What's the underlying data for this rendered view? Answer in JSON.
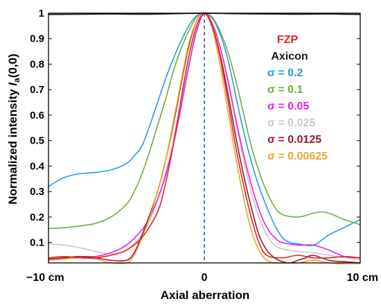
{
  "chart_data": {
    "type": "line",
    "title": "",
    "xlabel": "Axial aberration",
    "ylabel_main": "Normalized intensity ",
    "ylabel_italic": "I",
    "ylabel_sub": "a",
    "ylabel_tail": "(0,0)",
    "xlim": [
      -10,
      10
    ],
    "ylim": [
      0.02,
      1.0
    ],
    "x_ticks": [
      {
        "value": -10,
        "label": "−10 cm",
        "anchor": "start"
      },
      {
        "value": 0,
        "label": "0",
        "anchor": "middle"
      },
      {
        "value": 10,
        "label": "10 cm",
        "anchor": "end"
      }
    ],
    "y_ticks": [
      0.1,
      0.2,
      0.3,
      0.4,
      0.5,
      0.6,
      0.7,
      0.8,
      0.9,
      1
    ],
    "y_tick_labels": [
      "0.1",
      "0.2",
      "0.3",
      "0.4",
      "0.5",
      "0.6",
      "0.7",
      "0.8",
      "0.9",
      "1"
    ],
    "grid": false,
    "legend_position": "right",
    "focus_line": {
      "x": 0,
      "color": "#1f5fb0",
      "style": "dashed"
    },
    "series": [
      {
        "name": "FZP",
        "color": "#e0241b",
        "x": [
          -10,
          -9,
          -8,
          -7,
          -6,
          -5,
          -4,
          -3,
          -2.5,
          -2,
          -1.5,
          -1,
          -0.5,
          0,
          0.5,
          1,
          1.5,
          2,
          2.5,
          3,
          3.5,
          4,
          5,
          6,
          7,
          8,
          9,
          10
        ],
        "y": [
          0.04,
          0.045,
          0.04,
          0.04,
          0.05,
          0.07,
          0.12,
          0.22,
          0.33,
          0.48,
          0.66,
          0.83,
          0.95,
          1.0,
          0.95,
          0.83,
          0.66,
          0.48,
          0.33,
          0.2,
          0.1,
          0.05,
          0.04,
          0.05,
          0.04,
          0.04,
          0.045,
          0.04
        ]
      },
      {
        "name": "Axicon",
        "color": "#1a1a1a",
        "x": [
          -10,
          -8,
          -6,
          -4,
          -2,
          0,
          2,
          4,
          6,
          8,
          9,
          10
        ],
        "y": [
          0.995,
          0.996,
          0.997,
          0.996,
          0.998,
          1.0,
          0.998,
          0.997,
          0.996,
          0.997,
          0.996,
          0.995
        ]
      },
      {
        "name": "σ = 0.2",
        "color": "#1e9de0",
        "x": [
          -10,
          -9,
          -8,
          -7,
          -6,
          -5,
          -4.5,
          -4,
          -3.5,
          -3,
          -2.5,
          -2,
          -1.5,
          -1,
          -0.5,
          0,
          0.5,
          1,
          1.5,
          2,
          2.5,
          3,
          3.5,
          4,
          4.5,
          5,
          5.5,
          6,
          7,
          8,
          9,
          10
        ],
        "y": [
          0.32,
          0.355,
          0.37,
          0.375,
          0.385,
          0.41,
          0.44,
          0.48,
          0.56,
          0.65,
          0.74,
          0.82,
          0.89,
          0.95,
          0.99,
          1.0,
          0.98,
          0.92,
          0.82,
          0.68,
          0.54,
          0.42,
          0.32,
          0.24,
          0.17,
          0.12,
          0.1,
          0.095,
          0.09,
          0.13,
          0.16,
          0.19
        ]
      },
      {
        "name": "σ = 0.1",
        "color": "#6fac3a",
        "x": [
          -10,
          -9,
          -8,
          -7,
          -6,
          -5,
          -4.5,
          -4,
          -3.5,
          -3,
          -2.5,
          -2,
          -1.5,
          -1,
          -0.5,
          0,
          0.5,
          1,
          1.5,
          2,
          2.5,
          3,
          3.5,
          4,
          4.5,
          5,
          6,
          7,
          7.5,
          8,
          9,
          10
        ],
        "y": [
          0.155,
          0.158,
          0.165,
          0.175,
          0.2,
          0.25,
          0.3,
          0.37,
          0.46,
          0.56,
          0.66,
          0.77,
          0.86,
          0.93,
          0.985,
          1.0,
          0.985,
          0.93,
          0.85,
          0.74,
          0.61,
          0.48,
          0.38,
          0.3,
          0.24,
          0.21,
          0.2,
          0.215,
          0.22,
          0.215,
          0.19,
          0.17
        ]
      },
      {
        "name": "σ = 0.05",
        "color": "#ea1fe0",
        "x": [
          -10,
          -9,
          -8,
          -7,
          -6,
          -5,
          -4,
          -3.5,
          -3,
          -2.5,
          -2,
          -1.5,
          -1,
          -0.5,
          0,
          0.5,
          1,
          1.5,
          2,
          2.5,
          3,
          3.5,
          4,
          4.5,
          5,
          6,
          7,
          8,
          9,
          10
        ],
        "y": [
          0.035,
          0.04,
          0.045,
          0.045,
          0.06,
          0.09,
          0.15,
          0.2,
          0.27,
          0.36,
          0.48,
          0.63,
          0.79,
          0.93,
          1.0,
          0.96,
          0.87,
          0.74,
          0.59,
          0.45,
          0.33,
          0.23,
          0.16,
          0.12,
          0.1,
          0.09,
          0.09,
          0.07,
          0.045,
          0.04
        ]
      },
      {
        "name": "σ = 0.025",
        "color": "#c8c8c8",
        "x": [
          -10,
          -9,
          -8,
          -7,
          -6,
          -5,
          -4,
          -3.5,
          -3,
          -2.5,
          -2,
          -1.5,
          -1,
          -0.5,
          0,
          0.5,
          1,
          1.5,
          2,
          2.5,
          3,
          3.5,
          4,
          4.5,
          5,
          6,
          7,
          8,
          9,
          10
        ],
        "y": [
          0.095,
          0.09,
          0.08,
          0.065,
          0.055,
          0.07,
          0.13,
          0.19,
          0.27,
          0.37,
          0.5,
          0.65,
          0.8,
          0.94,
          1.0,
          0.96,
          0.87,
          0.73,
          0.58,
          0.43,
          0.3,
          0.2,
          0.13,
          0.09,
          0.075,
          0.065,
          0.06,
          0.05,
          0.04,
          0.035
        ]
      },
      {
        "name": "σ = 0.0125",
        "color": "#a0162a",
        "x": [
          -10,
          -9,
          -8,
          -7,
          -6,
          -5,
          -4.5,
          -4,
          -3.5,
          -3,
          -2.5,
          -2,
          -1.5,
          -1,
          -0.5,
          0,
          0.5,
          1,
          1.5,
          2,
          2.5,
          3,
          3.5,
          4,
          4.5,
          5,
          5.5,
          6,
          6.5,
          7,
          8,
          9,
          10
        ],
        "y": [
          0.035,
          0.04,
          0.045,
          0.04,
          0.03,
          0.03,
          0.06,
          0.13,
          0.21,
          0.3,
          0.42,
          0.56,
          0.72,
          0.87,
          0.97,
          1.0,
          0.95,
          0.84,
          0.69,
          0.52,
          0.37,
          0.24,
          0.13,
          0.07,
          0.04,
          0.025,
          0.02,
          0.03,
          0.04,
          0.05,
          0.03,
          0.025,
          0.02
        ]
      },
      {
        "name": "σ = 0.00625",
        "color": "#eba62a",
        "x": [
          -10,
          -9,
          -8,
          -7,
          -6,
          -5,
          -4.5,
          -4,
          -3.5,
          -3,
          -2.5,
          -2,
          -1.5,
          -1,
          -0.5,
          0,
          0.5,
          1,
          1.5,
          2,
          2.5,
          3,
          3.5,
          4,
          4.5,
          5,
          6,
          7,
          8,
          9,
          10
        ],
        "y": [
          0.03,
          0.035,
          0.04,
          0.035,
          0.02,
          0.02,
          0.05,
          0.12,
          0.2,
          0.3,
          0.42,
          0.57,
          0.73,
          0.88,
          0.97,
          1.0,
          0.94,
          0.8,
          0.62,
          0.44,
          0.28,
          0.15,
          0.07,
          0.03,
          0.02,
          0.02,
          0.02,
          0.03,
          0.02,
          0.015,
          0.015
        ]
      }
    ]
  }
}
